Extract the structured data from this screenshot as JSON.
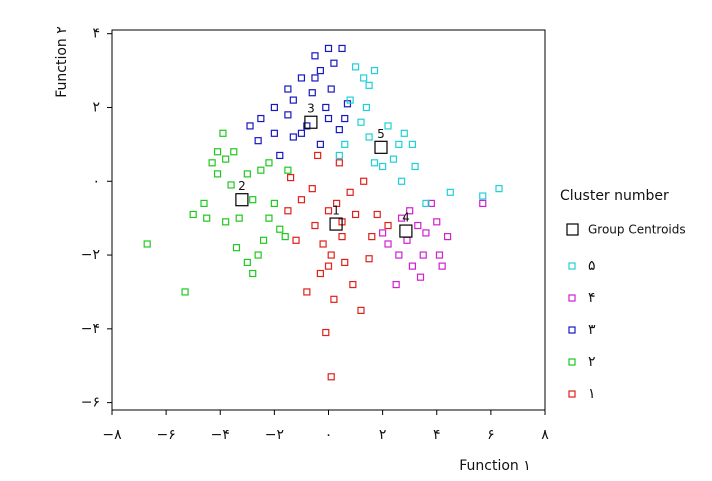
{
  "chart_data": {
    "type": "scatter",
    "xlabel": "Function ۱",
    "ylabel": "Function ۲",
    "legend_title": "Cluster number",
    "legend": "right",
    "xlim": [
      -8,
      8
    ],
    "ylim": [
      -6.2,
      4.1
    ],
    "xticks": [
      {
        "value": -8,
        "label": "−۸"
      },
      {
        "value": -6,
        "label": "−۶"
      },
      {
        "value": -4,
        "label": "−۴"
      },
      {
        "value": -2,
        "label": "−۲"
      },
      {
        "value": 0,
        "label": "۰"
      },
      {
        "value": 2,
        "label": "۲"
      },
      {
        "value": 4,
        "label": "۴"
      },
      {
        "value": 6,
        "label": "۶"
      },
      {
        "value": 8,
        "label": "۸"
      }
    ],
    "yticks": [
      {
        "value": 4,
        "label": "۴"
      },
      {
        "value": 2,
        "label": "۲"
      },
      {
        "value": 0,
        "label": "۰"
      },
      {
        "value": -2,
        "label": "−۲"
      },
      {
        "value": -4,
        "label": "−۴"
      },
      {
        "value": -6,
        "label": "−۶"
      }
    ],
    "centroids": {
      "name": "Group Centroids",
      "color": "#000000",
      "x": [
        0.28,
        -3.2,
        -0.65,
        2.86,
        1.94
      ],
      "y": [
        -1.16,
        -0.5,
        1.6,
        -1.35,
        0.92
      ],
      "labels": [
        "1",
        "2",
        "3",
        "4",
        "5"
      ]
    },
    "series": [
      {
        "name": "۱",
        "color": "#e0201a",
        "x": [
          -1,
          -0.5,
          0,
          0.3,
          0.5,
          0.8,
          1,
          1.3,
          1.6,
          0.1,
          -0.3,
          -1.2,
          -1.5,
          0.6,
          1.5,
          -0.8,
          0.2,
          -0.1,
          0,
          0.9,
          1.8,
          -0.6,
          0.4,
          -1.4,
          2.2,
          0.5,
          -0.2,
          0.1,
          1.2,
          -0.4
        ],
        "y": [
          -0.5,
          -1.2,
          -0.8,
          -0.6,
          -1.5,
          -0.3,
          -0.9,
          0,
          -1.5,
          -2,
          -2.5,
          -1.6,
          -0.8,
          -2.2,
          -2.1,
          -3,
          -3.2,
          -4.1,
          -2.3,
          -2.8,
          -0.9,
          -0.2,
          0.5,
          0.1,
          -1.2,
          -1.1,
          -1.7,
          -5.3,
          -3.5,
          0.7
        ]
      },
      {
        "name": "۲",
        "color": "#20c820",
        "x": [
          -4.3,
          -4.1,
          -3.8,
          -3.5,
          -3,
          -2.5,
          -2.2,
          -5,
          -4.5,
          -3.8,
          -3.3,
          -2.8,
          -2.2,
          -1.8,
          -3.4,
          -2.6,
          -3,
          -2.8,
          -6.7,
          -5.3,
          -4.6,
          -2,
          -3.9,
          -1.6,
          -2.4,
          -3.6,
          -4.1,
          -1.5
        ],
        "y": [
          0.5,
          0.2,
          0.6,
          0.8,
          0.2,
          0.3,
          0.5,
          -0.9,
          -1,
          -1.1,
          -1,
          -0.5,
          -1,
          -1.3,
          -1.8,
          -2,
          -2.2,
          -2.5,
          -1.7,
          -3,
          -0.6,
          -0.6,
          1.3,
          -1.5,
          -1.6,
          -0.1,
          0.8,
          0.3
        ]
      },
      {
        "name": "۳",
        "color": "#1818c0",
        "x": [
          -0.5,
          0,
          0.5,
          -0.3,
          0.2,
          -1,
          -1.5,
          -1.3,
          -0.6,
          0.1,
          0.7,
          -2,
          -2.5,
          -2.9,
          -2,
          -1.3,
          -0.8,
          0,
          0.4,
          -0.3,
          -1.8,
          -0.1,
          -2.6,
          -1.5,
          0.6,
          -1,
          -0.5
        ],
        "y": [
          3.4,
          3.6,
          3.6,
          3,
          3.2,
          2.8,
          2.5,
          2.2,
          2.4,
          2.5,
          2.1,
          2,
          1.7,
          1.5,
          1.3,
          1.2,
          1.5,
          1.7,
          1.4,
          1,
          0.7,
          2,
          1.1,
          1.8,
          1.7,
          1.3,
          2.8
        ]
      },
      {
        "name": "۴",
        "color": "#d020d0",
        "x": [
          2.7,
          3,
          3.3,
          3.6,
          4,
          4.4,
          2.6,
          3.1,
          3.4,
          2.5,
          5.7,
          4.1,
          2.2,
          3.8,
          2.9,
          2,
          3.5,
          4.2
        ],
        "y": [
          -1,
          -0.8,
          -1.2,
          -1.4,
          -1.1,
          -1.5,
          -2,
          -2.3,
          -2.6,
          -2.8,
          -0.6,
          -2,
          -1.7,
          -0.6,
          -1.6,
          -1.4,
          -2,
          -2.3
        ]
      },
      {
        "name": "۵",
        "color": "#20d0d8",
        "x": [
          1,
          1.3,
          1.7,
          1.5,
          0.8,
          1.2,
          0.6,
          1.5,
          2.2,
          2.6,
          2.4,
          3.1,
          3.2,
          2.8,
          4.5,
          6.3,
          5.7,
          2,
          1.7,
          3.6,
          2.7,
          1.4,
          0.4
        ],
        "y": [
          3.1,
          2.8,
          3,
          2.6,
          2.2,
          1.6,
          1,
          1.2,
          1.5,
          1,
          0.6,
          1,
          0.4,
          1.3,
          -0.3,
          -0.2,
          -0.4,
          0.4,
          0.5,
          -0.6,
          0,
          2,
          0.7
        ]
      }
    ]
  }
}
